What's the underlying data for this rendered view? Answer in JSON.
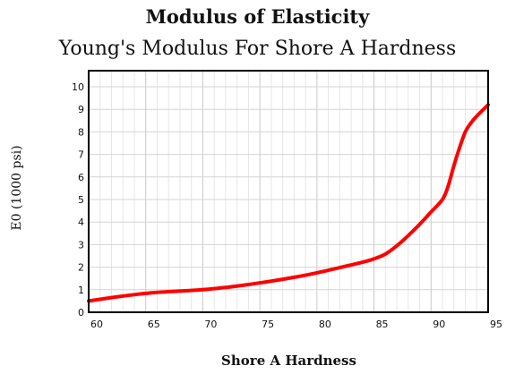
{
  "chart_data": {
    "type": "line",
    "title": "Modulus of Elasticity",
    "subtitle": "Young's Modulus For Shore A Hardness",
    "xlabel": "Shore A Hardness",
    "ylabel": "E0 (1000 psi)",
    "xlim": [
      60,
      95
    ],
    "ylim": [
      0,
      10
    ],
    "xticks": [
      "60",
      "65",
      "70",
      "75",
      "80",
      "85",
      "90",
      "95"
    ],
    "yticks": [
      "0",
      "1",
      "2",
      "3",
      "4",
      "5",
      "6",
      "7",
      "8",
      "9",
      "10"
    ],
    "grid": true,
    "legend": "none",
    "series": [
      {
        "color": "#ff0000",
        "x": [
          60,
          62,
          64,
          66,
          68,
          70,
          72,
          74,
          76,
          78,
          80,
          82,
          84,
          85,
          86,
          87,
          88,
          89,
          90,
          91,
          91.5,
          92,
          92.5,
          93,
          93.5,
          94,
          95
        ],
        "y": [
          0.5,
          0.65,
          0.78,
          0.88,
          0.94,
          1.0,
          1.1,
          1.23,
          1.38,
          1.55,
          1.75,
          1.98,
          2.22,
          2.37,
          2.58,
          2.95,
          3.4,
          3.9,
          4.45,
          5.0,
          5.6,
          6.5,
          7.3,
          8.0,
          8.4,
          8.7,
          9.2
        ]
      }
    ]
  }
}
